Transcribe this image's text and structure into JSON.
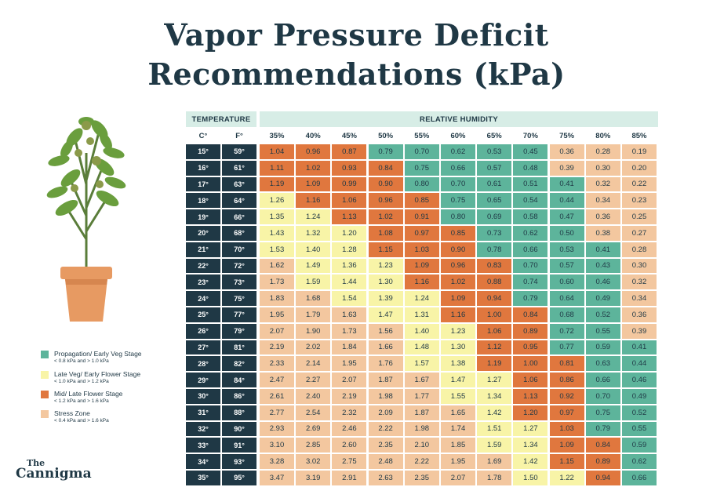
{
  "title_line1": "Vapor Pressure Deficit",
  "title_line2": "Recommendations (kPa)",
  "brand": {
    "line1": "The",
    "line2": "Cannigma"
  },
  "colors": {
    "propagation": "#5db49b",
    "late_veg": "#f8f4a7",
    "mid_late": "#e0773e",
    "stress": "#f3c79f",
    "dark": "#1f3845",
    "header": "#d7ede6"
  },
  "legend": [
    {
      "label": "Propagation/ Early Veg Stage",
      "range": "< 0.8 kPa and > 1.0 kPa",
      "zone": "propagation"
    },
    {
      "label": "Late Veg/ Early Flower Stage",
      "range": "< 1.0 kPa and > 1.2 kPa",
      "zone": "late_veg"
    },
    {
      "label": "Mid/ Late Flower Stage",
      "range": "< 1.2 kPa and > 1.6 kPa",
      "zone": "mid_late"
    },
    {
      "label": "Stress Zone",
      "range": "< 0.4 kPa and > 1.6 kPa",
      "zone": "stress"
    }
  ],
  "chart_data": {
    "type": "table",
    "title": "Vapor Pressure Deficit Recommendations (kPa)",
    "temperature_header": "TEMPERATURE",
    "humidity_header": "RELATIVE HUMIDITY",
    "celsius_header": "C°",
    "fahrenheit_header": "F°",
    "humidity": [
      "35%",
      "40%",
      "45%",
      "50%",
      "55%",
      "60%",
      "65%",
      "70%",
      "75%",
      "80%",
      "85%"
    ],
    "rows": [
      {
        "c": "15°",
        "f": "59°",
        "values": [
          "1.04",
          "0.96",
          "0.87",
          "0.79",
          "0.70",
          "0.62",
          "0.53",
          "0.45",
          "0.36",
          "0.28",
          "0.19"
        ],
        "zones": [
          "M",
          "M",
          "M",
          "P",
          "P",
          "P",
          "P",
          "P",
          "S",
          "S",
          "S"
        ]
      },
      {
        "c": "16°",
        "f": "61°",
        "values": [
          "1.11",
          "1.02",
          "0.93",
          "0.84",
          "0.75",
          "0.66",
          "0.57",
          "0.48",
          "0.39",
          "0.30",
          "0.20"
        ],
        "zones": [
          "M",
          "M",
          "M",
          "M",
          "P",
          "P",
          "P",
          "P",
          "S",
          "S",
          "S"
        ]
      },
      {
        "c": "17°",
        "f": "63°",
        "values": [
          "1.19",
          "1.09",
          "0.99",
          "0.90",
          "0.80",
          "0.70",
          "0.61",
          "0.51",
          "0.41",
          "0.32",
          "0.22"
        ],
        "zones": [
          "M",
          "M",
          "M",
          "M",
          "P",
          "P",
          "P",
          "P",
          "P",
          "S",
          "S"
        ]
      },
      {
        "c": "18°",
        "f": "64°",
        "values": [
          "1.26",
          "1.16",
          "1.06",
          "0.96",
          "0.85",
          "0.75",
          "0.65",
          "0.54",
          "0.44",
          "0.34",
          "0.23"
        ],
        "zones": [
          "L",
          "M",
          "M",
          "M",
          "M",
          "P",
          "P",
          "P",
          "P",
          "S",
          "S"
        ]
      },
      {
        "c": "19°",
        "f": "66°",
        "values": [
          "1.35",
          "1.24",
          "1.13",
          "1.02",
          "0.91",
          "0.80",
          "0.69",
          "0.58",
          "0.47",
          "0.36",
          "0.25"
        ],
        "zones": [
          "L",
          "L",
          "M",
          "M",
          "M",
          "P",
          "P",
          "P",
          "P",
          "S",
          "S"
        ]
      },
      {
        "c": "20°",
        "f": "68°",
        "values": [
          "1.43",
          "1.32",
          "1.20",
          "1.08",
          "0.97",
          "0.85",
          "0.73",
          "0.62",
          "0.50",
          "0.38",
          "0.27"
        ],
        "zones": [
          "L",
          "L",
          "L",
          "M",
          "M",
          "M",
          "P",
          "P",
          "P",
          "S",
          "S"
        ]
      },
      {
        "c": "21°",
        "f": "70°",
        "values": [
          "1.53",
          "1.40",
          "1.28",
          "1.15",
          "1.03",
          "0.90",
          "0.78",
          "0.66",
          "0.53",
          "0.41",
          "0.28"
        ],
        "zones": [
          "L",
          "L",
          "L",
          "M",
          "M",
          "M",
          "P",
          "P",
          "P",
          "P",
          "S"
        ]
      },
      {
        "c": "22°",
        "f": "72°",
        "values": [
          "1.62",
          "1.49",
          "1.36",
          "1.23",
          "1.09",
          "0.96",
          "0.83",
          "0.70",
          "0.57",
          "0.43",
          "0.30"
        ],
        "zones": [
          "S",
          "L",
          "L",
          "L",
          "M",
          "M",
          "M",
          "P",
          "P",
          "P",
          "S"
        ]
      },
      {
        "c": "23°",
        "f": "73°",
        "values": [
          "1.73",
          "1.59",
          "1.44",
          "1.30",
          "1.16",
          "1.02",
          "0.88",
          "0.74",
          "0.60",
          "0.46",
          "0.32"
        ],
        "zones": [
          "S",
          "L",
          "L",
          "L",
          "M",
          "M",
          "M",
          "P",
          "P",
          "P",
          "S"
        ]
      },
      {
        "c": "24°",
        "f": "75°",
        "values": [
          "1.83",
          "1.68",
          "1.54",
          "1.39",
          "1.24",
          "1.09",
          "0.94",
          "0.79",
          "0.64",
          "0.49",
          "0.34"
        ],
        "zones": [
          "S",
          "S",
          "L",
          "L",
          "L",
          "M",
          "M",
          "P",
          "P",
          "P",
          "S"
        ]
      },
      {
        "c": "25°",
        "f": "77°",
        "values": [
          "1.95",
          "1.79",
          "1.63",
          "1.47",
          "1.31",
          "1.16",
          "1.00",
          "0.84",
          "0.68",
          "0.52",
          "0.36"
        ],
        "zones": [
          "S",
          "S",
          "S",
          "L",
          "L",
          "M",
          "M",
          "M",
          "P",
          "P",
          "S"
        ]
      },
      {
        "c": "26°",
        "f": "79°",
        "values": [
          "2.07",
          "1.90",
          "1.73",
          "1.56",
          "1.40",
          "1.23",
          "1.06",
          "0.89",
          "0.72",
          "0.55",
          "0.39"
        ],
        "zones": [
          "S",
          "S",
          "S",
          "S",
          "L",
          "L",
          "M",
          "M",
          "P",
          "P",
          "S"
        ]
      },
      {
        "c": "27°",
        "f": "81°",
        "values": [
          "2.19",
          "2.02",
          "1.84",
          "1.66",
          "1.48",
          "1.30",
          "1.12",
          "0.95",
          "0.77",
          "0.59",
          "0.41"
        ],
        "zones": [
          "S",
          "S",
          "S",
          "S",
          "L",
          "L",
          "M",
          "M",
          "P",
          "P",
          "P"
        ]
      },
      {
        "c": "28°",
        "f": "82°",
        "values": [
          "2.33",
          "2.14",
          "1.95",
          "1.76",
          "1.57",
          "1.38",
          "1.19",
          "1.00",
          "0.81",
          "0.63",
          "0.44"
        ],
        "zones": [
          "S",
          "S",
          "S",
          "S",
          "L",
          "L",
          "M",
          "M",
          "M",
          "P",
          "P"
        ]
      },
      {
        "c": "29°",
        "f": "84°",
        "values": [
          "2.47",
          "2.27",
          "2.07",
          "1.87",
          "1.67",
          "1.47",
          "1.27",
          "1.06",
          "0.86",
          "0.66",
          "0.46"
        ],
        "zones": [
          "S",
          "S",
          "S",
          "S",
          "S",
          "L",
          "L",
          "M",
          "M",
          "P",
          "P"
        ]
      },
      {
        "c": "30°",
        "f": "86°",
        "values": [
          "2.61",
          "2.40",
          "2.19",
          "1.98",
          "1.77",
          "1.55",
          "1.34",
          "1.13",
          "0.92",
          "0.70",
          "0.49"
        ],
        "zones": [
          "S",
          "S",
          "S",
          "S",
          "S",
          "L",
          "L",
          "M",
          "M",
          "P",
          "P"
        ]
      },
      {
        "c": "31°",
        "f": "88°",
        "values": [
          "2.77",
          "2.54",
          "2.32",
          "2.09",
          "1.87",
          "1.65",
          "1.42",
          "1.20",
          "0.97",
          "0.75",
          "0.52"
        ],
        "zones": [
          "S",
          "S",
          "S",
          "S",
          "S",
          "S",
          "L",
          "M",
          "M",
          "P",
          "P"
        ]
      },
      {
        "c": "32°",
        "f": "90°",
        "values": [
          "2.93",
          "2.69",
          "2.46",
          "2.22",
          "1.98",
          "1.74",
          "1.51",
          "1.27",
          "1.03",
          "0.79",
          "0.55"
        ],
        "zones": [
          "S",
          "S",
          "S",
          "S",
          "S",
          "S",
          "L",
          "L",
          "M",
          "P",
          "P"
        ]
      },
      {
        "c": "33°",
        "f": "91°",
        "values": [
          "3.10",
          "2.85",
          "2.60",
          "2.35",
          "2.10",
          "1.85",
          "1.59",
          "1.34",
          "1.09",
          "0.84",
          "0.59"
        ],
        "zones": [
          "S",
          "S",
          "S",
          "S",
          "S",
          "S",
          "L",
          "L",
          "M",
          "M",
          "P"
        ]
      },
      {
        "c": "34°",
        "f": "93°",
        "values": [
          "3.28",
          "3.02",
          "2.75",
          "2.48",
          "2.22",
          "1.95",
          "1.69",
          "1.42",
          "1.15",
          "0.89",
          "0.62"
        ],
        "zones": [
          "S",
          "S",
          "S",
          "S",
          "S",
          "S",
          "S",
          "L",
          "M",
          "M",
          "P"
        ]
      },
      {
        "c": "35°",
        "f": "95°",
        "values": [
          "3.47",
          "3.19",
          "2.91",
          "2.63",
          "2.35",
          "2.07",
          "1.78",
          "1.50",
          "1.22",
          "0.94",
          "0.66"
        ],
        "zones": [
          "S",
          "S",
          "S",
          "S",
          "S",
          "S",
          "S",
          "L",
          "L",
          "M",
          "P"
        ]
      }
    ]
  }
}
